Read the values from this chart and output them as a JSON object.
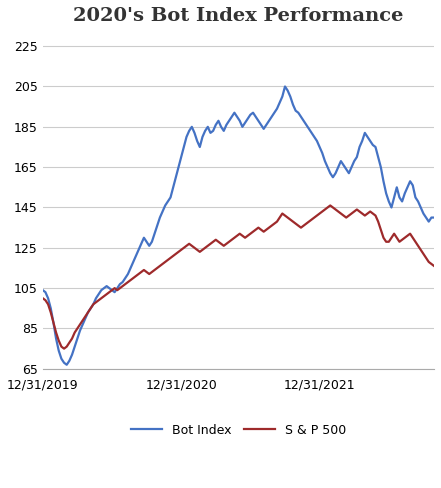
{
  "title": "2020's Bot Index Performance",
  "bot_index": [
    104,
    103,
    100,
    95,
    88,
    80,
    74,
    70,
    68,
    67,
    69,
    72,
    76,
    80,
    84,
    87,
    90,
    93,
    95,
    97,
    100,
    102,
    104,
    105,
    106,
    105,
    104,
    103,
    105,
    107,
    108,
    110,
    112,
    115,
    118,
    121,
    124,
    127,
    130,
    128,
    126,
    128,
    132,
    136,
    140,
    143,
    146,
    148,
    150,
    155,
    160,
    165,
    170,
    175,
    180,
    183,
    185,
    182,
    178,
    175,
    180,
    183,
    185,
    182,
    183,
    186,
    188,
    185,
    183,
    186,
    188,
    190,
    192,
    190,
    188,
    185,
    187,
    189,
    191,
    192,
    190,
    188,
    186,
    184,
    186,
    188,
    190,
    192,
    194,
    197,
    200,
    205,
    203,
    200,
    196,
    193,
    192,
    190,
    188,
    186,
    184,
    182,
    180,
    178,
    175,
    172,
    168,
    165,
    162,
    160,
    162,
    165,
    168,
    166,
    164,
    162,
    165,
    168,
    170,
    175,
    178,
    182,
    180,
    178,
    176,
    175,
    170,
    165,
    158,
    152,
    148,
    145,
    150,
    155,
    150,
    148,
    152,
    155,
    158,
    156,
    150,
    148,
    145,
    142,
    140,
    138,
    140,
    140
  ],
  "sp500": [
    100,
    99,
    97,
    93,
    88,
    83,
    79,
    76,
    75,
    76,
    78,
    80,
    83,
    85,
    87,
    89,
    91,
    93,
    95,
    97,
    98,
    99,
    100,
    101,
    102,
    103,
    104,
    105,
    104,
    105,
    106,
    107,
    108,
    109,
    110,
    111,
    112,
    113,
    114,
    113,
    112,
    113,
    114,
    115,
    116,
    117,
    118,
    119,
    120,
    121,
    122,
    123,
    124,
    125,
    126,
    127,
    126,
    125,
    124,
    123,
    124,
    125,
    126,
    127,
    128,
    129,
    128,
    127,
    126,
    127,
    128,
    129,
    130,
    131,
    132,
    131,
    130,
    131,
    132,
    133,
    134,
    135,
    134,
    133,
    134,
    135,
    136,
    137,
    138,
    140,
    142,
    141,
    140,
    139,
    138,
    137,
    136,
    135,
    136,
    137,
    138,
    139,
    140,
    141,
    142,
    143,
    144,
    145,
    146,
    145,
    144,
    143,
    142,
    141,
    140,
    141,
    142,
    143,
    144,
    143,
    142,
    141,
    142,
    143,
    142,
    141,
    138,
    134,
    130,
    128,
    128,
    130,
    132,
    130,
    128,
    129,
    130,
    131,
    132,
    130,
    128,
    126,
    124,
    122,
    120,
    118,
    117,
    116
  ],
  "x_tick_positions": [
    0,
    52,
    104
  ],
  "x_tick_labels": [
    "12/31/2019",
    "12/31/2020",
    "12/31/2021"
  ],
  "y_ticks": [
    65,
    85,
    105,
    125,
    145,
    165,
    185,
    205,
    225
  ],
  "ylim": [
    65,
    232
  ],
  "bot_color": "#4472C4",
  "sp500_color": "#9E2A2B",
  "bot_label": "Bot Index",
  "sp500_label": "S & P 500",
  "title_fontsize": 14,
  "tick_fontsize": 9,
  "background_color": "#ffffff",
  "grid_color": "#cccccc"
}
